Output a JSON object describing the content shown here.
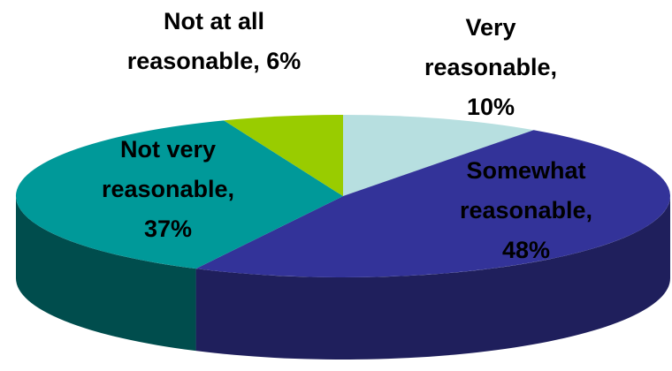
{
  "chart_data": {
    "type": "pie",
    "style": "3d",
    "title": "",
    "slices": [
      {
        "label_lines": [
          "Very",
          "reasonable,",
          "10%"
        ],
        "value": 10,
        "top_color": "#b7dfe0",
        "side_color": "#7fb0b2"
      },
      {
        "label_lines": [
          "Somewhat",
          "reasonable,",
          "48%"
        ],
        "value": 48,
        "top_color": "#333399",
        "side_color": "#1f1f5c"
      },
      {
        "label_lines": [
          "Not very",
          "reasonable,",
          "37%"
        ],
        "value": 37,
        "top_color": "#009999",
        "side_color": "#004d4d"
      },
      {
        "label_lines": [
          "Not at all",
          "reasonable, 6%"
        ],
        "value": 6,
        "top_color": "#99cc00",
        "side_color": "#5c7a00"
      }
    ]
  }
}
